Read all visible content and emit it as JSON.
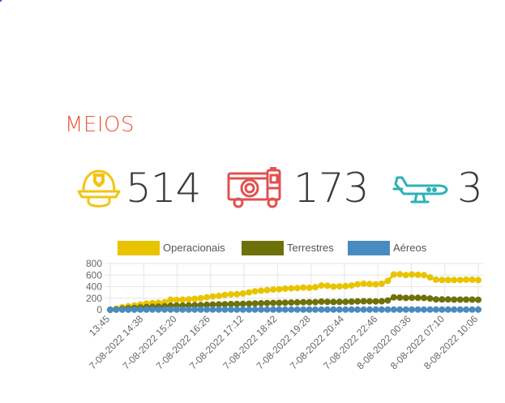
{
  "section": {
    "title": "MEIOS"
  },
  "stats": [
    {
      "id": "operacionais",
      "icon": "firefighter-helmet-icon",
      "value": "514",
      "color": "#f2c511"
    },
    {
      "id": "terrestres",
      "icon": "fire-truck-icon",
      "value": "173",
      "color": "#e05251"
    },
    {
      "id": "aereos",
      "icon": "airplane-icon",
      "value": "3",
      "color": "#2bb3b5"
    }
  ],
  "chart_data": {
    "type": "line",
    "legend_position": "top",
    "grid": true,
    "ylim": [
      0,
      800
    ],
    "y_ticks": [
      "800",
      "600",
      "400",
      "200",
      "0"
    ],
    "x_tick_labels": [
      "13:45",
      "7-08-2022 14:38",
      "7-08-2022 15:20",
      "7-08-2022 16:26",
      "7-08-2022 17:12",
      "7-08-2022 18:42",
      "7-08-2022 19:28",
      "7-08-2022 20:44",
      "7-08-2022 22:46",
      "8-08-2022 00:36",
      "8-08-2022 07:10",
      "8-08-2022 10:06"
    ],
    "series": [
      {
        "name": "Operacionais",
        "color": "#e8c400",
        "values": [
          0,
          20,
          45,
          60,
          75,
          90,
          105,
          115,
          120,
          130,
          175,
          170,
          175,
          180,
          190,
          200,
          215,
          230,
          240,
          255,
          265,
          270,
          280,
          300,
          320,
          330,
          340,
          350,
          355,
          365,
          370,
          375,
          385,
          380,
          390,
          420,
          415,
          400,
          405,
          410,
          420,
          440,
          450,
          445,
          440,
          450,
          500,
          610,
          615,
          600,
          610,
          605,
          600,
          560,
          520,
          515,
          515,
          515,
          515,
          520,
          520,
          514
        ]
      },
      {
        "name": "Terrestres",
        "color": "#6e7109",
        "values": [
          0,
          5,
          15,
          25,
          30,
          40,
          45,
          50,
          55,
          60,
          70,
          70,
          72,
          75,
          78,
          80,
          85,
          90,
          92,
          95,
          98,
          100,
          102,
          105,
          110,
          112,
          115,
          118,
          120,
          122,
          125,
          128,
          130,
          130,
          132,
          140,
          138,
          135,
          136,
          138,
          140,
          145,
          148,
          146,
          145,
          148,
          160,
          215,
          210,
          205,
          208,
          206,
          205,
          195,
          180,
          178,
          178,
          176,
          175,
          175,
          175,
          173
        ]
      },
      {
        "name": "Aéreos",
        "color": "#4a8bbf",
        "values": [
          0,
          1,
          2,
          2,
          2,
          3,
          3,
          3,
          3,
          3,
          3,
          3,
          3,
          3,
          3,
          3,
          3,
          3,
          3,
          3,
          3,
          3,
          3,
          3,
          3,
          3,
          3,
          3,
          3,
          3,
          3,
          3,
          3,
          3,
          3,
          3,
          3,
          3,
          3,
          3,
          3,
          3,
          3,
          3,
          3,
          3,
          3,
          3,
          3,
          3,
          3,
          3,
          3,
          3,
          3,
          3,
          3,
          3,
          3,
          3,
          3,
          3
        ]
      }
    ]
  }
}
